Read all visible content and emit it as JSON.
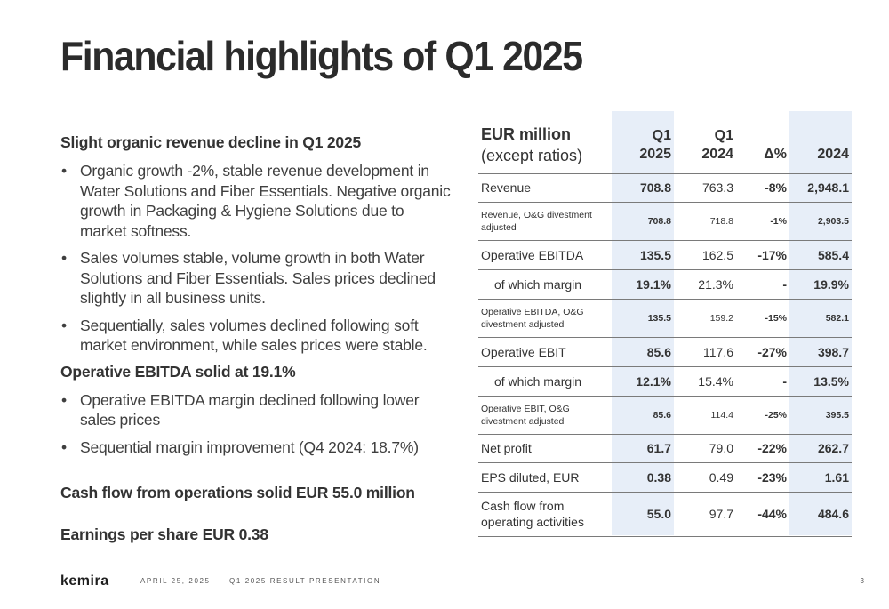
{
  "title": "Financial highlights of Q1 2025",
  "left": {
    "section1": {
      "heading": "Slight organic revenue decline in Q1 2025",
      "bullets": [
        "Organic growth -2%, stable revenue development in Water Solutions and Fiber Essentials. Negative organic growth in Packaging & Hygiene Solutions due to market softness.",
        "Sales volumes stable, volume growth in both Water Solutions and Fiber Essentials. Sales prices declined slightly in all business units.",
        "Sequentially, sales volumes declined following soft market environment, while sales prices were stable."
      ]
    },
    "section2": {
      "heading": "Operative EBITDA solid at 19.1%",
      "bullets": [
        "Operative EBITDA margin declined following lower sales prices",
        "Sequential margin improvement (Q4 2024: 18.7%)"
      ]
    },
    "cashflow": "Cash flow from operations solid EUR 55.0 million",
    "eps": "Earnings per share EUR 0.38"
  },
  "table": {
    "header": {
      "label_bold": "EUR million",
      "label_rest": "(except ratios)",
      "q1_2025_a": "Q1",
      "q1_2025_b": "2025",
      "q1_2024_a": "Q1",
      "q1_2024_b": "2024",
      "delta": "Δ%",
      "y2024": "2024"
    },
    "rows": [
      {
        "label": "Revenue",
        "q1_2025": "708.8",
        "q1_2024": "763.3",
        "delta": "-8%",
        "y2024": "2,948.1"
      },
      {
        "label": "Revenue, O&G divestment adjusted",
        "q1_2025": "708.8",
        "q1_2024": "718.8",
        "delta": "-1%",
        "y2024": "2,903.5"
      },
      {
        "label": "Operative EBITDA",
        "q1_2025": "135.5",
        "q1_2024": "162.5",
        "delta": "-17%",
        "y2024": "585.4"
      },
      {
        "label": "of which margin",
        "q1_2025": "19.1%",
        "q1_2024": "21.3%",
        "delta": "-",
        "y2024": "19.9%"
      },
      {
        "label": "Operative EBITDA, O&G divestment adjusted",
        "q1_2025": "135.5",
        "q1_2024": "159.2",
        "delta": "-15%",
        "y2024": "582.1"
      },
      {
        "label": "Operative EBIT",
        "q1_2025": "85.6",
        "q1_2024": "117.6",
        "delta": "-27%",
        "y2024": "398.7"
      },
      {
        "label": "of which margin",
        "q1_2025": "12.1%",
        "q1_2024": "15.4%",
        "delta": "-",
        "y2024": "13.5%"
      },
      {
        "label": "Operative EBIT, O&G divestment adjusted",
        "q1_2025": "85.6",
        "q1_2024": "114.4",
        "delta": "-25%",
        "y2024": "395.5"
      },
      {
        "label": "Net profit",
        "q1_2025": "61.7",
        "q1_2024": "79.0",
        "delta": "-22%",
        "y2024": "262.7"
      },
      {
        "label": "EPS diluted, EUR",
        "q1_2025": "0.38",
        "q1_2024": "0.49",
        "delta": "-23%",
        "y2024": "1.61"
      },
      {
        "label": "Cash flow from operating activities",
        "q1_2025": "55.0",
        "q1_2024": "97.7",
        "delta": "-44%",
        "y2024": "484.6"
      }
    ],
    "highlight_color": "#e7eef8"
  },
  "footer": {
    "logo": "kemira",
    "date": "APRIL 25, 2025",
    "presentation": "Q1 2025 RESULT PRESENTATION",
    "page": "3"
  }
}
